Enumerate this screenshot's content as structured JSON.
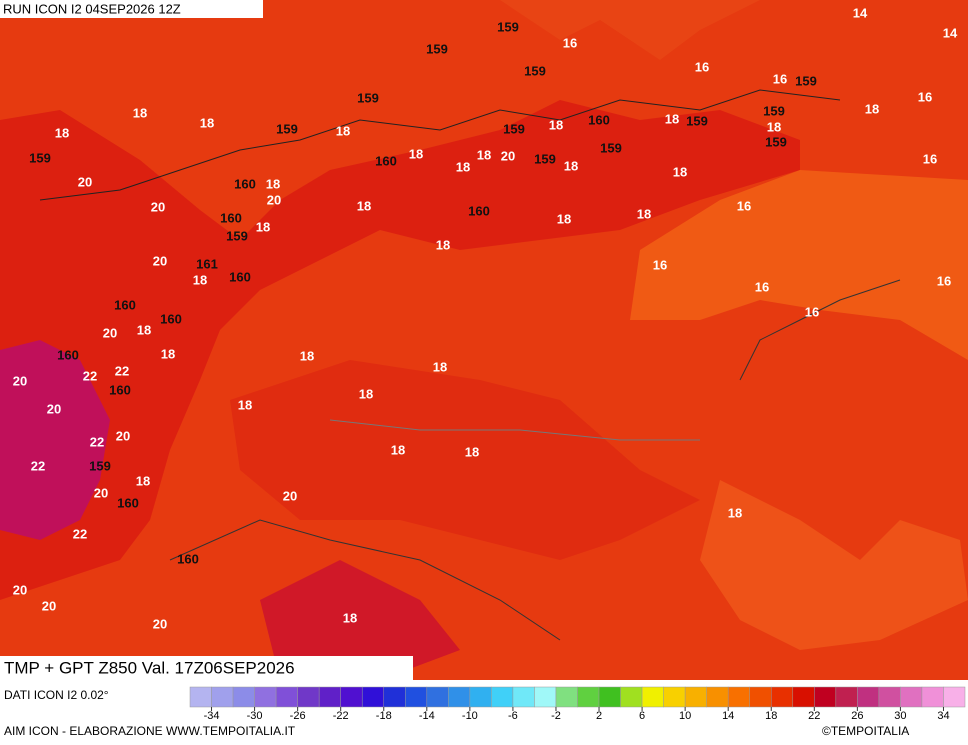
{
  "header": {
    "run": "RUN ICON I2 04SEP2026 12Z"
  },
  "footer": {
    "title": "TMP + GPT Z850 Val. 17Z06SEP2026",
    "source": "DATI ICON I2 0.02°",
    "credit": "AIM ICON - ELABORAZIONE WWW.TEMPOITALIA.IT",
    "copyright": "©TEMPOITALIA"
  },
  "legend": {
    "range": [
      -36,
      36
    ],
    "colors": [
      "#b4b4f0",
      "#a0a0ec",
      "#8c8ce8",
      "#9070e0",
      "#8050d8",
      "#7038c8",
      "#6020c8",
      "#5010d0",
      "#3010d8",
      "#2030d8",
      "#2050e0",
      "#3070e0",
      "#3090e8",
      "#30b0f0",
      "#40d0f8",
      "#70e8f8",
      "#a0f8f8",
      "#80e080",
      "#60d040",
      "#40c020",
      "#a0e020",
      "#f0f000",
      "#f8d000",
      "#f8b000",
      "#f89000",
      "#f87000",
      "#f05000",
      "#e83000",
      "#d81000",
      "#c00020",
      "#c02050",
      "#c03080",
      "#d050a0",
      "#e070c0",
      "#f090d8",
      "#f8b0e8"
    ],
    "ticks": [
      -34,
      -30,
      -26,
      -22,
      -18,
      -14,
      -10,
      -6,
      -2,
      2,
      6,
      10,
      14,
      18,
      22,
      26,
      30,
      34
    ]
  },
  "contour_labels": [
    14,
    14,
    159,
    16,
    159,
    16,
    159,
    16,
    16,
    159,
    18,
    18,
    159,
    159,
    18,
    159,
    160,
    18,
    159,
    18,
    18,
    18,
    20,
    159,
    18,
    159,
    18,
    159,
    16,
    18,
    159,
    16,
    20,
    160,
    18,
    20,
    160,
    18,
    160,
    18,
    18,
    18,
    159,
    16,
    20,
    161,
    160,
    16,
    159,
    18,
    16,
    160,
    16,
    20,
    18,
    160,
    18,
    160,
    22,
    18,
    22,
    160,
    20,
    20,
    18,
    18,
    160,
    20,
    22,
    20,
    18,
    22,
    159,
    18,
    20,
    18,
    160,
    22,
    18,
    18,
    160,
    18,
    20,
    20,
    18,
    20,
    20,
    18,
    18,
    18
  ]
}
